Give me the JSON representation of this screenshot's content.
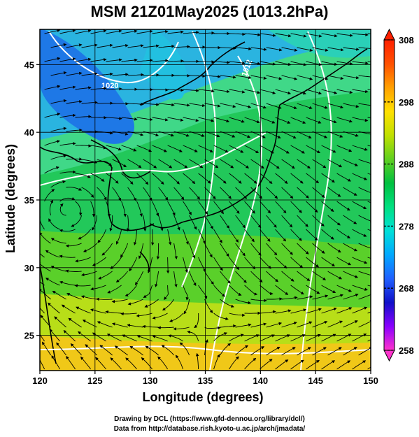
{
  "title": "MSM 21Z01May2025 (1013.2hPa)",
  "map": {
    "xlabel": "Longitude (degrees)",
    "ylabel": "Latitude  (degrees)",
    "x_ticks": [
      "120",
      "125",
      "130",
      "135",
      "140",
      "145",
      "150"
    ],
    "y_ticks": [
      "25",
      "30",
      "35",
      "40",
      "45"
    ],
    "x_range": [
      120,
      150
    ],
    "y_range": [
      22.4,
      47.6
    ],
    "contour_labels": [
      "1020",
      "1012"
    ]
  },
  "colorbar": {
    "ticks": [
      "308",
      "298",
      "288",
      "278",
      "268",
      "258"
    ],
    "range": [
      258,
      308
    ],
    "colors": [
      "#ff33cc",
      "#8a00ff",
      "#1010c8",
      "#2060ff",
      "#00a8ff",
      "#00e0d8",
      "#00e080",
      "#00c040",
      "#60d020",
      "#c0e000",
      "#ffe000",
      "#ffa000",
      "#ff5000",
      "#ff2000"
    ]
  },
  "footer": {
    "line1": "Drawing by DCL (https://www.gfd-dennou.org/library/dcl/)",
    "line2": "Data from http://database.rish.kyoto-u.ac.jp/arch/jmadata/"
  }
}
